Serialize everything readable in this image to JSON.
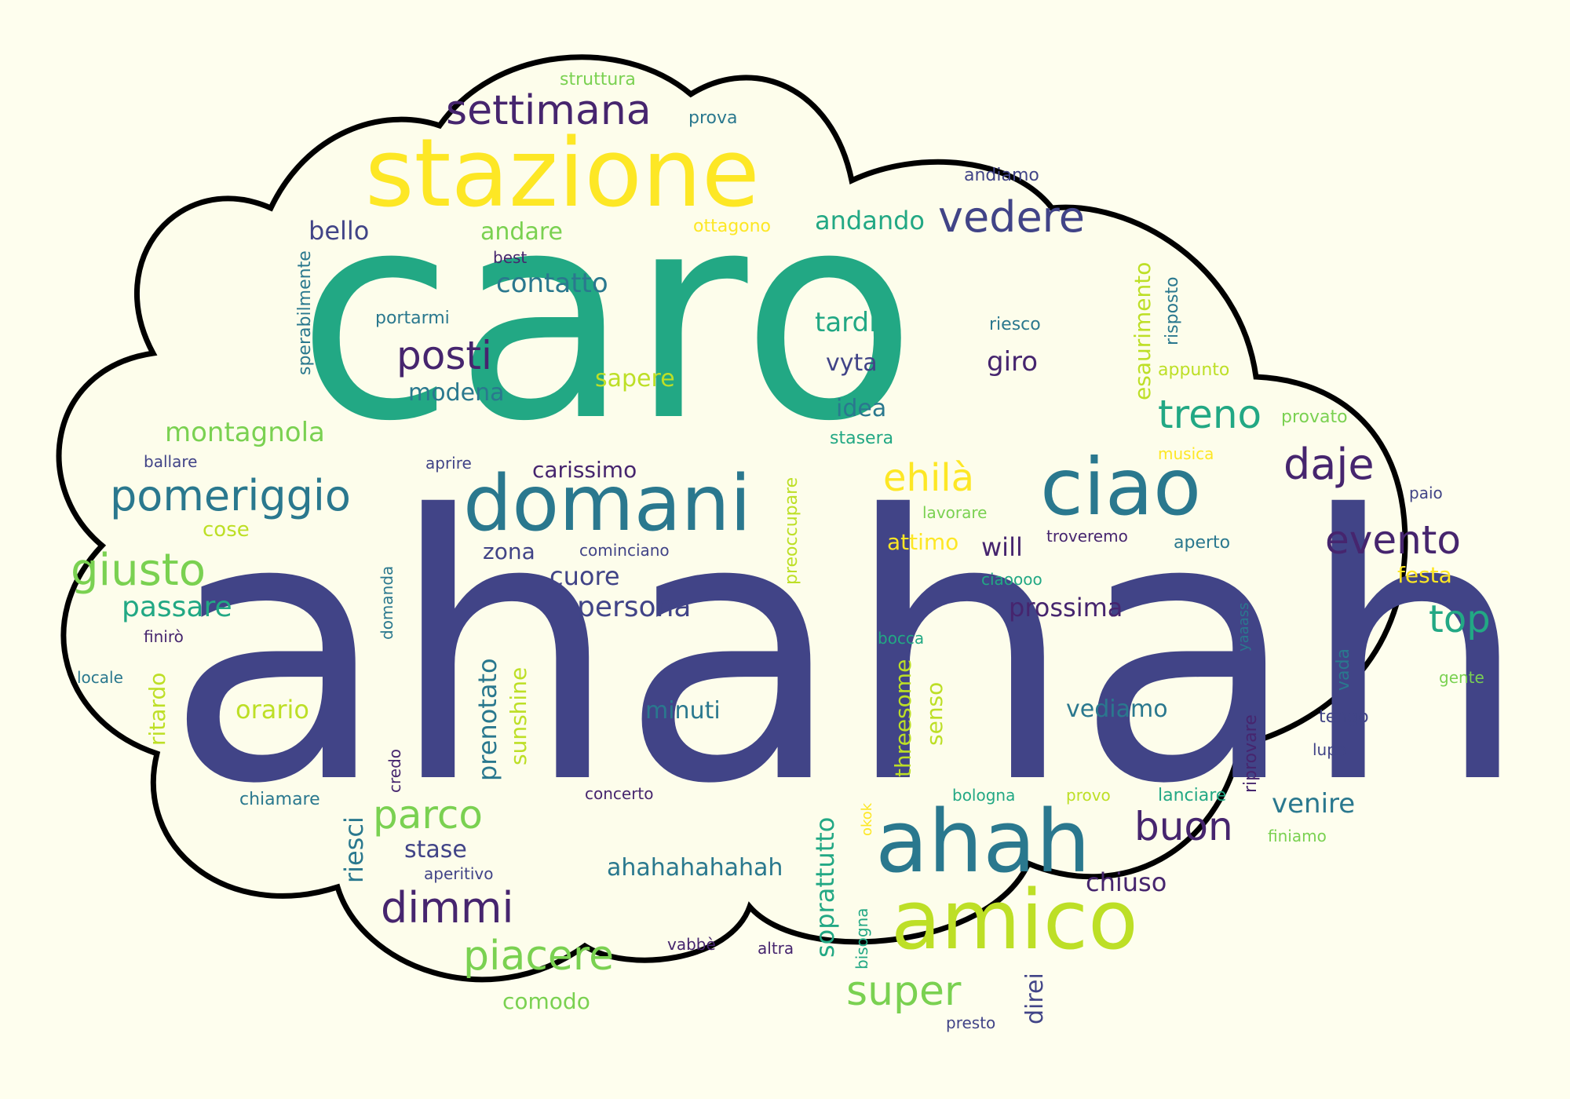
{
  "background_color": "#fefeee",
  "outline_color": "#000000",
  "palette": {
    "indigo": "#414487",
    "dark_purple": "#46256e",
    "teal": "#2a788e",
    "green": "#22a884",
    "light_green": "#7ad151",
    "yellow": "#fde725",
    "lime": "#bddf26"
  },
  "words": [
    {
      "text": "caro",
      "color": "#22a884",
      "rotation": 0
    },
    {
      "text": "ahahah",
      "color": "#414487",
      "rotation": 0
    },
    {
      "text": "stazione",
      "color": "#fde725",
      "rotation": 0
    },
    {
      "text": "domani",
      "color": "#2a788e",
      "rotation": 0
    },
    {
      "text": "ciao",
      "color": "#2a788e",
      "rotation": 0
    },
    {
      "text": "ahah",
      "color": "#2a788e",
      "rotation": 0
    },
    {
      "text": "amico",
      "color": "#bddf26",
      "rotation": 0
    },
    {
      "text": "settimana",
      "color": "#46256e",
      "rotation": 0
    },
    {
      "text": "vedere",
      "color": "#414487",
      "rotation": 0
    },
    {
      "text": "pomeriggio",
      "color": "#2a788e",
      "rotation": 0
    },
    {
      "text": "giusto",
      "color": "#7ad151",
      "rotation": 0
    },
    {
      "text": "posti",
      "color": "#46256e",
      "rotation": 0
    },
    {
      "text": "treno",
      "color": "#22a884",
      "rotation": 0
    },
    {
      "text": "daje",
      "color": "#46256e",
      "rotation": 0
    },
    {
      "text": "evento",
      "color": "#46256e",
      "rotation": 0
    },
    {
      "text": "ehilà",
      "color": "#fde725",
      "rotation": 0
    },
    {
      "text": "top",
      "color": "#22a884",
      "rotation": 0
    },
    {
      "text": "parco",
      "color": "#7ad151",
      "rotation": 0
    },
    {
      "text": "buon",
      "color": "#46256e",
      "rotation": 0
    },
    {
      "text": "dimmi",
      "color": "#46256e",
      "rotation": 0
    },
    {
      "text": "piacere",
      "color": "#7ad151",
      "rotation": 0
    },
    {
      "text": "super",
      "color": "#7ad151",
      "rotation": 0
    },
    {
      "text": "persona",
      "color": "#414487",
      "rotation": 0
    },
    {
      "text": "passare",
      "color": "#22a884",
      "rotation": 0
    },
    {
      "text": "montagnola",
      "color": "#7ad151",
      "rotation": 0
    },
    {
      "text": "contatto",
      "color": "#2a788e",
      "rotation": 0
    },
    {
      "text": "bello",
      "color": "#414487",
      "rotation": 0
    },
    {
      "text": "andare",
      "color": "#7ad151",
      "rotation": 0
    },
    {
      "text": "andando",
      "color": "#22a884",
      "rotation": 0
    },
    {
      "text": "tardi",
      "color": "#22a884",
      "rotation": 0
    },
    {
      "text": "giro",
      "color": "#46256e",
      "rotation": 0
    },
    {
      "text": "modena",
      "color": "#2a788e",
      "rotation": 0
    },
    {
      "text": "sapere",
      "color": "#bddf26",
      "rotation": 0
    },
    {
      "text": "vyta",
      "color": "#414487",
      "rotation": 0
    },
    {
      "text": "idea",
      "color": "#2a788e",
      "rotation": 0
    },
    {
      "text": "carissimo",
      "color": "#46256e",
      "rotation": 0
    },
    {
      "text": "cuore",
      "color": "#414487",
      "rotation": 0
    },
    {
      "text": "prossima",
      "color": "#46256e",
      "rotation": 0
    },
    {
      "text": "orario",
      "color": "#bddf26",
      "rotation": 0
    },
    {
      "text": "minuti",
      "color": "#2a788e",
      "rotation": 0
    },
    {
      "text": "vediamo",
      "color": "#2a788e",
      "rotation": 0
    },
    {
      "text": "venire",
      "color": "#2a788e",
      "rotation": 0
    },
    {
      "text": "chiuso",
      "color": "#46256e",
      "rotation": 0
    },
    {
      "text": "stase",
      "color": "#414487",
      "rotation": 0
    },
    {
      "text": "ahahahahahah",
      "color": "#2a788e",
      "rotation": 0
    },
    {
      "text": "comodo",
      "color": "#7ad151",
      "rotation": 0
    },
    {
      "text": "attimo",
      "color": "#fde725",
      "rotation": 0
    },
    {
      "text": "will",
      "color": "#46256e",
      "rotation": 0
    },
    {
      "text": "festa",
      "color": "#fde725",
      "rotation": 0
    },
    {
      "text": "zona",
      "color": "#414487",
      "rotation": 0
    },
    {
      "text": "cose",
      "color": "#bddf26",
      "rotation": 0
    },
    {
      "text": "struttura",
      "color": "#7ad151",
      "rotation": 0
    },
    {
      "text": "prova",
      "color": "#2a788e",
      "rotation": 0
    },
    {
      "text": "ottagono",
      "color": "#fde725",
      "rotation": 0
    },
    {
      "text": "andiamo",
      "color": "#414487",
      "rotation": 0
    },
    {
      "text": "best",
      "color": "#46256e",
      "rotation": 0
    },
    {
      "text": "portarmi",
      "color": "#2a788e",
      "rotation": 0
    },
    {
      "text": "riesco",
      "color": "#2a788e",
      "rotation": 0
    },
    {
      "text": "appunto",
      "color": "#bddf26",
      "rotation": 0
    },
    {
      "text": "provato",
      "color": "#7ad151",
      "rotation": 0
    },
    {
      "text": "stasera",
      "color": "#22a884",
      "rotation": 0
    },
    {
      "text": "musica",
      "color": "#fde725",
      "rotation": 0
    },
    {
      "text": "ballare",
      "color": "#414487",
      "rotation": 0
    },
    {
      "text": "aprire",
      "color": "#414487",
      "rotation": 0
    },
    {
      "text": "lavorare",
      "color": "#7ad151",
      "rotation": 0
    },
    {
      "text": "paio",
      "color": "#414487",
      "rotation": 0
    },
    {
      "text": "cominciano",
      "color": "#414487",
      "rotation": 0
    },
    {
      "text": "troveremo",
      "color": "#46256e",
      "rotation": 0
    },
    {
      "text": "aperto",
      "color": "#2a788e",
      "rotation": 0
    },
    {
      "text": "ciaoooo",
      "color": "#22a884",
      "rotation": 0
    },
    {
      "text": "finirò",
      "color": "#46256e",
      "rotation": 0
    },
    {
      "text": "bocca",
      "color": "#22a884",
      "rotation": 0
    },
    {
      "text": "locale",
      "color": "#2a788e",
      "rotation": 0
    },
    {
      "text": "gente",
      "color": "#7ad151",
      "rotation": 0
    },
    {
      "text": "tengo",
      "color": "#414487",
      "rotation": 0
    },
    {
      "text": "lupo",
      "color": "#414487",
      "rotation": 0
    },
    {
      "text": "chiamare",
      "color": "#2a788e",
      "rotation": 0
    },
    {
      "text": "concerto",
      "color": "#46256e",
      "rotation": 0
    },
    {
      "text": "bologna",
      "color": "#22a884",
      "rotation": 0
    },
    {
      "text": "provo",
      "color": "#bddf26",
      "rotation": 0
    },
    {
      "text": "lanciare",
      "color": "#22a884",
      "rotation": 0
    },
    {
      "text": "finiamo",
      "color": "#7ad151",
      "rotation": 0
    },
    {
      "text": "aperitivo",
      "color": "#414487",
      "rotation": 0
    },
    {
      "text": "vabbè",
      "color": "#46256e",
      "rotation": 0
    },
    {
      "text": "altra",
      "color": "#46256e",
      "rotation": 0
    },
    {
      "text": "presto",
      "color": "#414487",
      "rotation": 0
    },
    {
      "text": "sperabilmente",
      "color": "#2a788e",
      "rotation": -90
    },
    {
      "text": "esaurimento",
      "color": "#bddf26",
      "rotation": -90
    },
    {
      "text": "risposto",
      "color": "#2a788e",
      "rotation": -90
    },
    {
      "text": "preoccupare",
      "color": "#bddf26",
      "rotation": -90
    },
    {
      "text": "domanda",
      "color": "#2a788e",
      "rotation": -90
    },
    {
      "text": "yaaass",
      "color": "#2a788e",
      "rotation": -90
    },
    {
      "text": "vada",
      "color": "#2a788e",
      "rotation": -90
    },
    {
      "text": "ritardo",
      "color": "#bddf26",
      "rotation": -90
    },
    {
      "text": "prenotato",
      "color": "#2a788e",
      "rotation": -90
    },
    {
      "text": "sunshine",
      "color": "#bddf26",
      "rotation": -90
    },
    {
      "text": "threesome",
      "color": "#bddf26",
      "rotation": -90
    },
    {
      "text": "senso",
      "color": "#bddf26",
      "rotation": -90
    },
    {
      "text": "riprovare",
      "color": "#46256e",
      "rotation": -90
    },
    {
      "text": "credo",
      "color": "#46256e",
      "rotation": -90
    },
    {
      "text": "riesci",
      "color": "#2a788e",
      "rotation": -90
    },
    {
      "text": "soprattutto",
      "color": "#22a884",
      "rotation": -90
    },
    {
      "text": "okok",
      "color": "#fde725",
      "rotation": -90
    },
    {
      "text": "bisogna",
      "color": "#22a884",
      "rotation": -90
    },
    {
      "text": "direi",
      "color": "#414487",
      "rotation": -90
    }
  ]
}
